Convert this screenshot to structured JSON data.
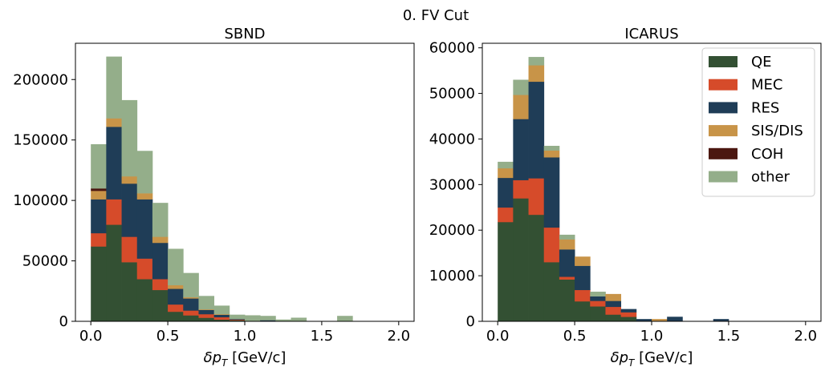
{
  "figure": {
    "suptitle": "0. FV Cut"
  },
  "colors": {
    "QE": "#335033",
    "MEC": "#d64b2a",
    "RES": "#1f3d57",
    "SIS/DIS": "#c89448",
    "COH": "#4b1710",
    "other": "#94ae8a"
  },
  "chart_data": [
    {
      "type": "bar",
      "stacked": true,
      "title": "SBND",
      "xlabel": "δp_T [GeV/c]",
      "ylabel": "",
      "bin_width": 0.1,
      "x": [
        0.05,
        0.15,
        0.25,
        0.35,
        0.45,
        0.55,
        0.65,
        0.75,
        0.85,
        0.95,
        1.05,
        1.15,
        1.25,
        1.35,
        1.45,
        1.55,
        1.65,
        1.75,
        1.85,
        1.95
      ],
      "xlim": [
        -0.1,
        2.1
      ],
      "ylim": [
        0,
        230000
      ],
      "xticks": [
        "0.0",
        "0.5",
        "1.0",
        "1.5",
        "2.0"
      ],
      "yticks": [
        "0",
        "50000",
        "100000",
        "150000",
        "200000"
      ],
      "grid": false,
      "legend": "",
      "series": [
        {
          "name": "QE",
          "values": [
            62000,
            80000,
            49000,
            35000,
            26000,
            8000,
            5000,
            3000,
            1500,
            1000,
            500,
            500,
            0,
            0,
            0,
            0,
            0,
            0,
            0,
            0
          ]
        },
        {
          "name": "MEC",
          "values": [
            11000,
            21000,
            21000,
            17000,
            9000,
            6000,
            4000,
            3000,
            2000,
            500,
            0,
            0,
            0,
            0,
            0,
            0,
            0,
            0,
            0,
            0
          ]
        },
        {
          "name": "RES",
          "values": [
            28000,
            60000,
            44000,
            49000,
            30000,
            13000,
            10000,
            3500,
            2000,
            500,
            0,
            500,
            0,
            0,
            0,
            0,
            0,
            0,
            0,
            0
          ]
        },
        {
          "name": "SIS/DIS",
          "values": [
            7000,
            7000,
            6000,
            5000,
            5000,
            3000,
            1000,
            500,
            500,
            0,
            0,
            0,
            0,
            0,
            0,
            0,
            0,
            0,
            0,
            0
          ]
        },
        {
          "name": "COH",
          "values": [
            2000,
            0,
            0,
            0,
            0,
            0,
            0,
            0,
            0,
            0,
            0,
            0,
            0,
            0,
            0,
            0,
            0,
            0,
            0,
            0
          ]
        },
        {
          "name": "other",
          "values": [
            36500,
            51000,
            63000,
            35000,
            28000,
            30000,
            20000,
            11000,
            7000,
            3500,
            4500,
            3500,
            1500,
            3000,
            0,
            0,
            4500,
            0,
            0,
            0
          ]
        }
      ]
    },
    {
      "type": "bar",
      "stacked": true,
      "title": "ICARUS",
      "xlabel": "δp_T [GeV/c]",
      "ylabel": "",
      "bin_width": 0.1,
      "x": [
        0.05,
        0.15,
        0.25,
        0.35,
        0.45,
        0.55,
        0.65,
        0.75,
        0.85,
        0.95,
        1.05,
        1.15,
        1.25,
        1.35,
        1.45,
        1.55,
        1.65,
        1.75,
        1.85,
        1.95
      ],
      "xlim": [
        -0.1,
        2.1
      ],
      "ylim": [
        0,
        61000
      ],
      "xticks": [
        "0.0",
        "0.5",
        "1.0",
        "1.5",
        "2.0"
      ],
      "yticks": [
        "0",
        "10000",
        "20000",
        "30000",
        "40000",
        "50000",
        "60000"
      ],
      "grid": false,
      "legend": "top-right",
      "series": [
        {
          "name": "QE",
          "values": [
            21800,
            27000,
            23400,
            13000,
            9200,
            4400,
            3300,
            1500,
            1000,
            0,
            0,
            0,
            0,
            0,
            0,
            0,
            0,
            0,
            0,
            0
          ]
        },
        {
          "name": "MEC",
          "values": [
            3200,
            4000,
            8000,
            7600,
            600,
            2500,
            1200,
            1700,
            1000,
            0,
            0,
            0,
            0,
            0,
            0,
            0,
            0,
            0,
            0,
            0
          ]
        },
        {
          "name": "RES",
          "values": [
            6500,
            13400,
            21200,
            15400,
            6000,
            5300,
            1000,
            1300,
            700,
            500,
            0,
            1000,
            0,
            0,
            500,
            0,
            0,
            0,
            0,
            0
          ]
        },
        {
          "name": "SIS/DIS",
          "values": [
            2100,
            5300,
            3600,
            1500,
            2200,
            2000,
            0,
            1500,
            0,
            0,
            500,
            0,
            0,
            0,
            0,
            0,
            0,
            0,
            0,
            0
          ]
        },
        {
          "name": "COH",
          "values": [
            0,
            0,
            0,
            0,
            0,
            0,
            0,
            0,
            0,
            0,
            0,
            0,
            0,
            0,
            0,
            0,
            0,
            0,
            0,
            0
          ]
        },
        {
          "name": "other",
          "values": [
            1400,
            3300,
            1800,
            1000,
            1000,
            0,
            1000,
            0,
            0,
            0,
            0,
            0,
            0,
            0,
            0,
            0,
            0,
            0,
            0,
            0
          ]
        }
      ]
    }
  ]
}
